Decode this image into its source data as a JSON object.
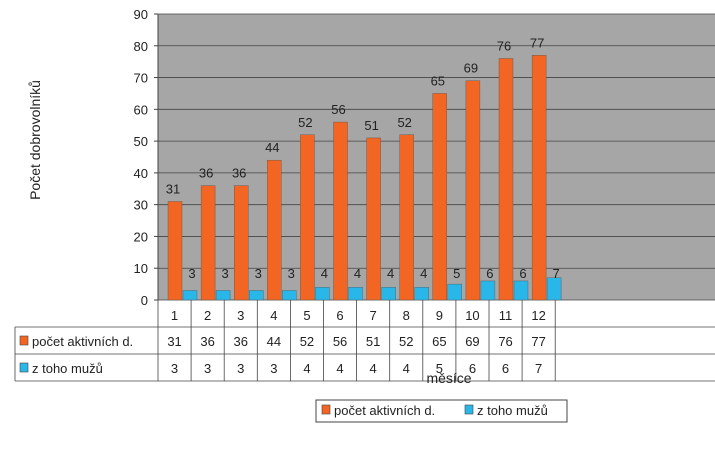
{
  "chart_data": {
    "type": "bar",
    "title": "",
    "xlabel": "měsíce",
    "ylabel": "Počet dobrovolníků",
    "ylim": [
      0,
      90
    ],
    "yticks": [
      0,
      10,
      20,
      30,
      40,
      50,
      60,
      70,
      80,
      90
    ],
    "grid": true,
    "legend_position": "bottom",
    "categories": [
      "1",
      "2",
      "3",
      "4",
      "5",
      "6",
      "7",
      "8",
      "9",
      "10",
      "11",
      "12"
    ],
    "series": [
      {
        "name": "počet aktivních d.",
        "color": "#f26522",
        "values": [
          31,
          36,
          36,
          44,
          52,
          56,
          51,
          52,
          65,
          69,
          76,
          77
        ]
      },
      {
        "name": "z toho mužů",
        "color": "#29b6e8",
        "values": [
          3,
          3,
          3,
          3,
          4,
          4,
          4,
          4,
          5,
          6,
          6,
          7
        ]
      }
    ]
  }
}
